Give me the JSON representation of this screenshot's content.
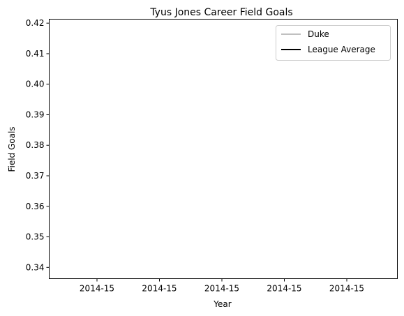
{
  "chart_data": {
    "type": "line",
    "title": "Tyus Jones Career Field Goals",
    "xlabel": "Year",
    "ylabel": "Field Goals",
    "x_tick_labels": [
      "2014-15",
      "2014-15",
      "2014-15",
      "2014-15",
      "2014-15"
    ],
    "y_ticks": [
      0.34,
      0.35,
      0.36,
      0.37,
      0.38,
      0.39,
      0.4,
      0.41,
      0.42
    ],
    "y_tick_labels": [
      "0.34",
      "0.35",
      "0.36",
      "0.37",
      "0.38",
      "0.39",
      "0.40",
      "0.41",
      "0.42"
    ],
    "ylim": [
      0.3363,
      0.4213
    ],
    "x": [
      "2014-15"
    ],
    "series": [
      {
        "name": "Duke",
        "values": [
          null
        ],
        "color": "#c0c0c0"
      },
      {
        "name": "League Average",
        "values": [
          null
        ],
        "color": "#000000"
      }
    ],
    "legend_position": "upper right",
    "grid": false
  }
}
